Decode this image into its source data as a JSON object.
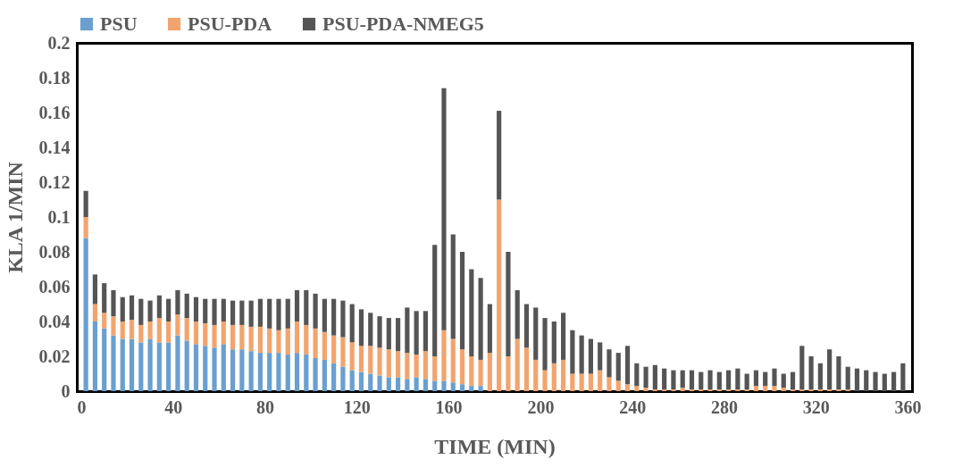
{
  "chart_data": {
    "type": "bar",
    "stacked": true,
    "xlabel": "TIME (MIN)",
    "ylabel": "KLA 1/MIN",
    "x": [
      2,
      6,
      10,
      14,
      18,
      22,
      26,
      30,
      34,
      38,
      42,
      46,
      50,
      54,
      58,
      62,
      66,
      70,
      74,
      78,
      82,
      86,
      90,
      94,
      98,
      102,
      106,
      110,
      114,
      118,
      122,
      126,
      130,
      134,
      138,
      142,
      146,
      150,
      154,
      158,
      162,
      166,
      170,
      174,
      178,
      182,
      186,
      190,
      194,
      198,
      202,
      206,
      210,
      214,
      218,
      222,
      226,
      230,
      234,
      238,
      242,
      246,
      250,
      254,
      258,
      262,
      266,
      270,
      274,
      278,
      282,
      286,
      290,
      294,
      298,
      302,
      306,
      310,
      314,
      318,
      322,
      326,
      330,
      334,
      338,
      342,
      346,
      350,
      354,
      358
    ],
    "series": [
      {
        "name": "PSU",
        "color": "#6a9fd0",
        "values": [
          0.088,
          0.04,
          0.036,
          0.032,
          0.03,
          0.03,
          0.028,
          0.03,
          0.028,
          0.028,
          0.032,
          0.029,
          0.027,
          0.026,
          0.025,
          0.027,
          0.024,
          0.024,
          0.023,
          0.022,
          0.022,
          0.022,
          0.021,
          0.022,
          0.021,
          0.019,
          0.018,
          0.016,
          0.014,
          0.012,
          0.011,
          0.01,
          0.009,
          0.008,
          0.008,
          0.007,
          0.008,
          0.007,
          0.006,
          0.006,
          0.005,
          0.004,
          0.003,
          0.003,
          0,
          0,
          0,
          0,
          0,
          0,
          0,
          0,
          0,
          0,
          0,
          0,
          0,
          0,
          0,
          0,
          0,
          0,
          0,
          0,
          0,
          0,
          0,
          0,
          0,
          0,
          0,
          0,
          0,
          0,
          0,
          0,
          0,
          0,
          0,
          0,
          0,
          0,
          0,
          0,
          0,
          0,
          0,
          0,
          0,
          0
        ]
      },
      {
        "name": "PSU-PDA",
        "color": "#f2a46e",
        "values": [
          0.012,
          0.01,
          0.009,
          0.011,
          0.01,
          0.011,
          0.01,
          0.01,
          0.014,
          0.012,
          0.012,
          0.013,
          0.013,
          0.013,
          0.013,
          0.013,
          0.014,
          0.014,
          0.014,
          0.015,
          0.014,
          0.013,
          0.015,
          0.018,
          0.017,
          0.017,
          0.016,
          0.016,
          0.017,
          0.016,
          0.015,
          0.016,
          0.016,
          0.016,
          0.015,
          0.015,
          0.013,
          0.016,
          0.014,
          0.029,
          0.025,
          0.02,
          0.017,
          0.015,
          0.022,
          0.11,
          0.02,
          0.03,
          0.025,
          0.018,
          0.012,
          0.016,
          0.018,
          0.01,
          0.01,
          0.01,
          0.012,
          0.008,
          0.006,
          0.004,
          0.003,
          0.002,
          0.001,
          0.001,
          0.001,
          0.002,
          0.001,
          0.001,
          0.001,
          0.001,
          0.001,
          0.001,
          0.001,
          0.003,
          0.003,
          0.003,
          0.002,
          0.001,
          0.001,
          0.001,
          0.001,
          0.001,
          0.001,
          0.001,
          0,
          0,
          0,
          0,
          0,
          0
        ]
      },
      {
        "name": "PSU-PDA-NMEG5",
        "color": "#555555",
        "values": [
          0.015,
          0.017,
          0.017,
          0.015,
          0.014,
          0.014,
          0.015,
          0.012,
          0.013,
          0.013,
          0.014,
          0.014,
          0.014,
          0.014,
          0.015,
          0.013,
          0.014,
          0.014,
          0.015,
          0.016,
          0.017,
          0.018,
          0.017,
          0.018,
          0.02,
          0.02,
          0.019,
          0.021,
          0.021,
          0.022,
          0.021,
          0.019,
          0.018,
          0.018,
          0.019,
          0.026,
          0.025,
          0.023,
          0.064,
          0.139,
          0.06,
          0.056,
          0.05,
          0.047,
          0.028,
          0.051,
          0.06,
          0.028,
          0.025,
          0.03,
          0.03,
          0.024,
          0.027,
          0.025,
          0.022,
          0.02,
          0.016,
          0.016,
          0.016,
          0.022,
          0.013,
          0.012,
          0.014,
          0.012,
          0.011,
          0.01,
          0.011,
          0.01,
          0.011,
          0.01,
          0.011,
          0.012,
          0.009,
          0.009,
          0.008,
          0.01,
          0.008,
          0.01,
          0.025,
          0.019,
          0.015,
          0.023,
          0.019,
          0.013,
          0.013,
          0.012,
          0.011,
          0.01,
          0.011,
          0.016
        ]
      }
    ],
    "xlim": [
      0,
      360
    ],
    "xticks": [
      0,
      40,
      80,
      120,
      160,
      200,
      240,
      280,
      320,
      360
    ],
    "ylim": [
      0,
      0.2
    ],
    "yticks": [
      0,
      0.02,
      0.04,
      0.06,
      0.08,
      0.1,
      0.12,
      0.14,
      0.16,
      0.18,
      0.2
    ],
    "grid": false,
    "legend": "top left"
  }
}
